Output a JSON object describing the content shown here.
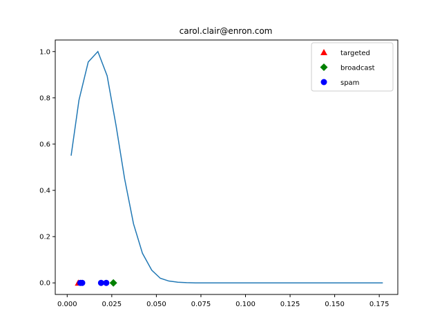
{
  "chart_data": {
    "type": "line",
    "title": "carol.clair@enron.com",
    "xlim": [
      -0.0067,
      0.1854
    ],
    "ylim": [
      -0.05,
      1.05
    ],
    "x_ticks": [
      0.0,
      0.025,
      0.05,
      0.075,
      0.1,
      0.125,
      0.15,
      0.175
    ],
    "x_tick_labels": [
      "0.000",
      "0.025",
      "0.050",
      "0.075",
      "0.100",
      "0.125",
      "0.150",
      "0.175"
    ],
    "y_ticks": [
      0.0,
      0.2,
      0.4,
      0.6,
      0.8,
      1.0
    ],
    "y_tick_labels": [
      "0.0",
      "0.2",
      "0.4",
      "0.6",
      "0.8",
      "1.0"
    ],
    "grid": false,
    "legend_position": "top-right",
    "line_color": "#1f77b4",
    "curve": {
      "x": [
        0.0022,
        0.0066,
        0.0118,
        0.0172,
        0.0224,
        0.0274,
        0.0322,
        0.0372,
        0.0422,
        0.0474,
        0.0522,
        0.057,
        0.062,
        0.067,
        0.072,
        0.08,
        0.1,
        0.125,
        0.15,
        0.177
      ],
      "y": [
        0.55,
        0.79,
        0.955,
        1.0,
        0.895,
        0.68,
        0.45,
        0.255,
        0.128,
        0.055,
        0.02,
        0.008,
        0.003,
        0.001,
        0.0,
        0.0,
        0.0,
        0.0,
        0.0,
        0.0
      ]
    },
    "series": [
      {
        "name": "targeted",
        "marker": "triangle",
        "color": "#ff0000",
        "x": [
          0.0062
        ],
        "y": [
          0.0
        ]
      },
      {
        "name": "broadcast",
        "marker": "diamond",
        "color": "#008000",
        "x": [
          0.0259
        ],
        "y": [
          0.0
        ]
      },
      {
        "name": "spam",
        "marker": "circle",
        "color": "#0000ff",
        "x": [
          0.0074,
          0.0084,
          0.019,
          0.0219
        ],
        "y": [
          0.0,
          0.0,
          0.0,
          0.0
        ]
      }
    ]
  }
}
